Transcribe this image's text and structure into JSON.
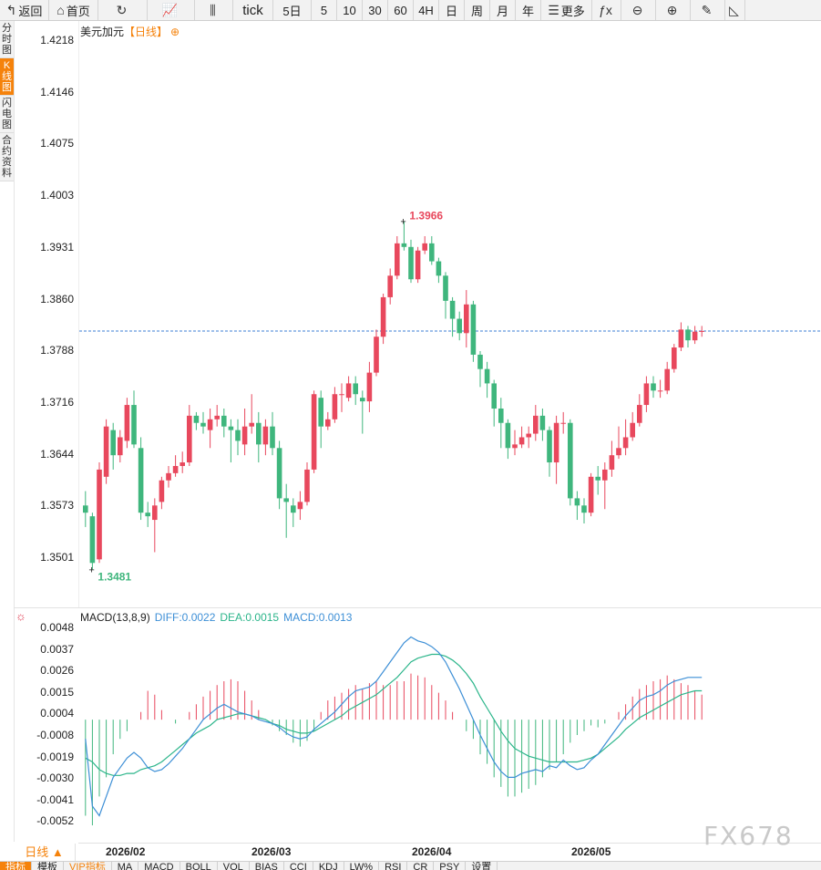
{
  "toolbar": [
    {
      "name": "back-button",
      "label": "返回",
      "icon": "↰"
    },
    {
      "name": "home-button",
      "label": "首页",
      "icon": "⌂"
    },
    {
      "name": "refresh-button",
      "label": "",
      "icon": "↻"
    },
    {
      "name": "indicator-button",
      "label": "",
      "icon": "📈"
    },
    {
      "name": "kline-style-button",
      "label": "",
      "icon": "⫼"
    },
    {
      "name": "period-tick",
      "label": "tick",
      "icon": ""
    },
    {
      "name": "period-5day",
      "label": "5日",
      "icon": ""
    },
    {
      "name": "period-5",
      "label": "5",
      "icon": ""
    },
    {
      "name": "period-10",
      "label": "10",
      "icon": ""
    },
    {
      "name": "period-30",
      "label": "30",
      "icon": ""
    },
    {
      "name": "period-60",
      "label": "60",
      "icon": ""
    },
    {
      "name": "period-4h",
      "label": "4H",
      "icon": ""
    },
    {
      "name": "period-day",
      "label": "日",
      "icon": ""
    },
    {
      "name": "period-week",
      "label": "周",
      "icon": ""
    },
    {
      "name": "period-month",
      "label": "月",
      "icon": ""
    },
    {
      "name": "period-year",
      "label": "年",
      "icon": ""
    },
    {
      "name": "more-button",
      "label": "更多",
      "icon": "☰"
    },
    {
      "name": "formula-button",
      "label": "",
      "icon": "ƒx"
    },
    {
      "name": "zoom-out-button",
      "label": "",
      "icon": "⊖"
    },
    {
      "name": "zoom-in-button",
      "label": "",
      "icon": "⊕"
    },
    {
      "name": "draw-button",
      "label": "",
      "icon": "✎"
    },
    {
      "name": "drawline-button",
      "label": "",
      "icon": "◺"
    }
  ],
  "side_tabs": [
    {
      "name": "tab-timeshare",
      "label": "分时图",
      "active": false
    },
    {
      "name": "tab-kline",
      "label": "K线图",
      "active": true
    },
    {
      "name": "tab-flash",
      "label": "闪电图",
      "active": false
    },
    {
      "name": "tab-contract",
      "label": "合约资料",
      "active": false
    }
  ],
  "chart_title": {
    "symbol": "美元加元",
    "period": "【日线】",
    "add_icon": "⊕"
  },
  "price_ticks": [
    "1.4218",
    "1.4146",
    "1.4075",
    "1.4003",
    "1.3931",
    "1.3860",
    "1.3788",
    "1.3716",
    "1.3644",
    "1.3573",
    "1.3501"
  ],
  "high_label": "1.3966",
  "low_label": "1.3481",
  "macd": {
    "title": "MACD(13,8,9)",
    "diff": "DIFF:0.0022",
    "dea": "DEA:0.0015",
    "macd": "MACD:0.0013",
    "ticks": [
      "0.0048",
      "0.0037",
      "0.0026",
      "0.0015",
      "0.0004",
      "-0.0008",
      "-0.0019",
      "-0.0030",
      "-0.0041",
      "-0.0052"
    ]
  },
  "date_labels": [
    "2026/02",
    "2026/03",
    "2026/04",
    "2026/05"
  ],
  "period_button": "日线 ▲",
  "watermark": "FX678",
  "bottom_tabs": [
    {
      "label": "指标",
      "style": "active"
    },
    {
      "label": "模板",
      "style": ""
    },
    {
      "label": "VIP指标",
      "style": "hl"
    },
    {
      "label": "MA",
      "style": ""
    },
    {
      "label": "MACD",
      "style": ""
    },
    {
      "label": "BOLL",
      "style": ""
    },
    {
      "label": "VOL",
      "style": ""
    },
    {
      "label": "BIAS",
      "style": ""
    },
    {
      "label": "CCI",
      "style": ""
    },
    {
      "label": "KDJ",
      "style": ""
    },
    {
      "label": "LW%",
      "style": ""
    },
    {
      "label": "RSI",
      "style": ""
    },
    {
      "label": "CR",
      "style": ""
    },
    {
      "label": "PSY",
      "style": ""
    },
    {
      "label": "设置",
      "style": ""
    }
  ],
  "colors": {
    "up": "#e8485d",
    "down": "#3fb67d",
    "diff": "#3d8fd6",
    "dea": "#2bb58a",
    "accent": "#f5820b",
    "last_price_line": "#3d7fd6"
  },
  "chart_data": [
    {
      "type": "candlestick",
      "title": "美元加元【日线】",
      "y_range": [
        1.3481,
        1.4218
      ],
      "last_price": 1.3813,
      "high": 1.3966,
      "low": 1.3481,
      "x_labels": [
        "2026/02",
        "2026/03",
        "2026/04",
        "2026/05"
      ],
      "candles": [
        [
          1.357,
          1.356,
          1.359,
          1.354
        ],
        [
          1.3555,
          1.349,
          1.356,
          1.3481
        ],
        [
          1.3495,
          1.362,
          1.363,
          1.349
        ],
        [
          1.361,
          1.368,
          1.369,
          1.36
        ],
        [
          1.3675,
          1.364,
          1.3685,
          1.362
        ],
        [
          1.364,
          1.3665,
          1.3675,
          1.363
        ],
        [
          1.366,
          1.371,
          1.372,
          1.365
        ],
        [
          1.371,
          1.3655,
          1.373,
          1.365
        ],
        [
          1.365,
          1.356,
          1.3665,
          1.355
        ],
        [
          1.356,
          1.3555,
          1.3575,
          1.354
        ],
        [
          1.355,
          1.357,
          1.358,
          1.3505
        ],
        [
          1.3575,
          1.3605,
          1.361,
          1.3565
        ],
        [
          1.3605,
          1.3615,
          1.3625,
          1.3595
        ],
        [
          1.3615,
          1.3625,
          1.364,
          1.361
        ],
        [
          1.3625,
          1.363,
          1.3645,
          1.3615
        ],
        [
          1.363,
          1.3695,
          1.371,
          1.3625
        ],
        [
          1.3695,
          1.3685,
          1.37,
          1.3675
        ],
        [
          1.3685,
          1.368,
          1.37,
          1.367
        ],
        [
          1.3675,
          1.369,
          1.3705,
          1.365
        ],
        [
          1.369,
          1.3695,
          1.371,
          1.368
        ],
        [
          1.3695,
          1.368,
          1.3705,
          1.3665
        ],
        [
          1.368,
          1.3675,
          1.369,
          1.363
        ],
        [
          1.3675,
          1.366,
          1.369,
          1.364
        ],
        [
          1.3655,
          1.368,
          1.3705,
          1.364
        ],
        [
          1.368,
          1.3685,
          1.3725,
          1.367
        ],
        [
          1.3685,
          1.3655,
          1.37,
          1.363
        ],
        [
          1.3655,
          1.368,
          1.369,
          1.364
        ],
        [
          1.368,
          1.365,
          1.37,
          1.364
        ],
        [
          1.365,
          1.358,
          1.366,
          1.3565
        ],
        [
          1.358,
          1.3575,
          1.36,
          1.3525
        ],
        [
          1.357,
          1.356,
          1.358,
          1.354
        ],
        [
          1.3565,
          1.3575,
          1.359,
          1.355
        ],
        [
          1.3575,
          1.362,
          1.363,
          1.357
        ],
        [
          1.362,
          1.3725,
          1.373,
          1.3615
        ],
        [
          1.372,
          1.368,
          1.373,
          1.365
        ],
        [
          1.368,
          1.369,
          1.37,
          1.3675
        ],
        [
          1.369,
          1.3725,
          1.3735,
          1.3685
        ],
        [
          1.3725,
          1.3725,
          1.374,
          1.37
        ],
        [
          1.372,
          1.374,
          1.375,
          1.3715
        ],
        [
          1.374,
          1.3725,
          1.375,
          1.371
        ],
        [
          1.372,
          1.3715,
          1.373,
          1.367
        ],
        [
          1.3715,
          1.3755,
          1.377,
          1.37
        ],
        [
          1.3755,
          1.3805,
          1.3815,
          1.375
        ],
        [
          1.3805,
          1.386,
          1.3865,
          1.3795
        ],
        [
          1.386,
          1.389,
          1.39,
          1.385
        ],
        [
          1.389,
          1.3935,
          1.3945,
          1.3885
        ],
        [
          1.3935,
          1.393,
          1.3966,
          1.3925
        ],
        [
          1.393,
          1.3885,
          1.394,
          1.388
        ],
        [
          1.3885,
          1.3925,
          1.393,
          1.388
        ],
        [
          1.3925,
          1.3935,
          1.3945,
          1.392
        ],
        [
          1.3935,
          1.391,
          1.3945,
          1.3905
        ],
        [
          1.391,
          1.389,
          1.3915,
          1.388
        ],
        [
          1.389,
          1.3855,
          1.3895,
          1.383
        ],
        [
          1.3855,
          1.383,
          1.386,
          1.3805
        ],
        [
          1.383,
          1.381,
          1.384,
          1.38
        ],
        [
          1.381,
          1.385,
          1.387,
          1.379
        ],
        [
          1.385,
          1.378,
          1.3855,
          1.377
        ],
        [
          1.378,
          1.376,
          1.3785,
          1.3735
        ],
        [
          1.376,
          1.374,
          1.377,
          1.372
        ],
        [
          1.374,
          1.3705,
          1.3745,
          1.368
        ],
        [
          1.3705,
          1.3685,
          1.372,
          1.365
        ],
        [
          1.3685,
          1.365,
          1.369,
          1.3635
        ],
        [
          1.365,
          1.3655,
          1.3675,
          1.364
        ],
        [
          1.3655,
          1.3665,
          1.368,
          1.365
        ],
        [
          1.3665,
          1.367,
          1.368,
          1.365
        ],
        [
          1.367,
          1.3695,
          1.371,
          1.366
        ],
        [
          1.3695,
          1.3675,
          1.3705,
          1.366
        ],
        [
          1.3675,
          1.363,
          1.368,
          1.361
        ],
        [
          1.363,
          1.3685,
          1.3695,
          1.36
        ],
        [
          1.3685,
          1.3685,
          1.37,
          1.367
        ],
        [
          1.3685,
          1.358,
          1.369,
          1.357
        ],
        [
          1.358,
          1.357,
          1.359,
          1.355
        ],
        [
          1.357,
          1.356,
          1.358,
          1.3545
        ],
        [
          1.356,
          1.361,
          1.3615,
          1.3555
        ],
        [
          1.361,
          1.3605,
          1.3625,
          1.3585
        ],
        [
          1.3605,
          1.362,
          1.363,
          1.3565
        ],
        [
          1.362,
          1.364,
          1.366,
          1.361
        ],
        [
          1.364,
          1.365,
          1.368,
          1.3635
        ],
        [
          1.365,
          1.3665,
          1.369,
          1.364
        ],
        [
          1.3665,
          1.3685,
          1.37,
          1.366
        ],
        [
          1.3685,
          1.371,
          1.3725,
          1.368
        ],
        [
          1.371,
          1.374,
          1.375,
          1.37
        ],
        [
          1.374,
          1.373,
          1.375,
          1.372
        ],
        [
          1.373,
          1.373,
          1.3745,
          1.372
        ],
        [
          1.373,
          1.376,
          1.377,
          1.3725
        ],
        [
          1.376,
          1.379,
          1.3795,
          1.3755
        ],
        [
          1.379,
          1.3815,
          1.3825,
          1.3785
        ],
        [
          1.3815,
          1.38,
          1.382,
          1.379
        ],
        [
          1.38,
          1.3812,
          1.382,
          1.3795
        ],
        [
          1.3812,
          1.3813,
          1.382,
          1.3805
        ]
      ]
    },
    {
      "type": "macd",
      "title": "MACD(13,8,9)",
      "y_range": [
        -0.006,
        0.0048
      ],
      "diff_last": 0.0022,
      "dea_last": 0.0015,
      "macd_last": 0.0013,
      "diff": [
        -0.001,
        -0.0045,
        -0.005,
        -0.004,
        -0.003,
        -0.0025,
        -0.002,
        -0.0017,
        -0.002,
        -0.0025,
        -0.0027,
        -0.0026,
        -0.0023,
        -0.0019,
        -0.0015,
        -0.001,
        -0.0005,
        0.0,
        0.0003,
        0.0006,
        0.0008,
        0.0006,
        0.0004,
        0.0003,
        0.0002,
        0.0,
        -0.0001,
        -0.0002,
        -0.0004,
        -0.0007,
        -0.0009,
        -0.001,
        -0.0009,
        -0.0005,
        -0.0002,
        0.0001,
        0.0004,
        0.0008,
        0.0012,
        0.0015,
        0.0016,
        0.0017,
        0.002,
        0.0025,
        0.003,
        0.0035,
        0.004,
        0.0043,
        0.0041,
        0.004,
        0.0038,
        0.0035,
        0.003,
        0.0023,
        0.0016,
        0.0008,
        0.0,
        -0.0008,
        -0.0015,
        -0.0022,
        -0.0027,
        -0.003,
        -0.003,
        -0.0028,
        -0.0027,
        -0.0026,
        -0.0027,
        -0.0024,
        -0.0025,
        -0.0021,
        -0.0024,
        -0.0026,
        -0.0025,
        -0.0021,
        -0.0018,
        -0.0013,
        -0.0008,
        -0.0003,
        0.0002,
        0.0006,
        0.001,
        0.0012,
        0.0013,
        0.0015,
        0.0018,
        0.002,
        0.0021,
        0.0022,
        0.0022,
        0.0022
      ],
      "dea": [
        -0.002,
        -0.0022,
        -0.0026,
        -0.0028,
        -0.0029,
        -0.0029,
        -0.0028,
        -0.0028,
        -0.0026,
        -0.0025,
        -0.0024,
        -0.0022,
        -0.0019,
        -0.0016,
        -0.0013,
        -0.001,
        -0.0007,
        -0.0005,
        -0.0003,
        0.0,
        0.0001,
        0.0002,
        0.0003,
        0.0003,
        0.0002,
        0.0001,
        0.0,
        -0.0002,
        -0.0003,
        -0.0005,
        -0.0006,
        -0.0007,
        -0.0007,
        -0.0006,
        -0.0004,
        -0.0002,
        0.0,
        0.0002,
        0.0005,
        0.0007,
        0.0009,
        0.0011,
        0.0013,
        0.0016,
        0.0019,
        0.0022,
        0.0026,
        0.003,
        0.0032,
        0.0033,
        0.0034,
        0.0034,
        0.0033,
        0.0031,
        0.0028,
        0.0024,
        0.0019,
        0.0012,
        0.0006,
        0.0,
        -0.0006,
        -0.0011,
        -0.0015,
        -0.0017,
        -0.0019,
        -0.002,
        -0.0021,
        -0.0022,
        -0.0022,
        -0.0022,
        -0.0022,
        -0.0022,
        -0.0021,
        -0.002,
        -0.0018,
        -0.0015,
        -0.0012,
        -0.0009,
        -0.0005,
        -0.0002,
        0.0001,
        0.0003,
        0.0005,
        0.0007,
        0.0009,
        0.0011,
        0.0013,
        0.0014,
        0.0015,
        0.0015
      ],
      "hist": [
        -0.005,
        -0.0055,
        -0.004,
        -0.003,
        -0.0018,
        -0.001,
        -0.0006,
        0.0,
        0.0004,
        0.0015,
        0.0013,
        0.0005,
        0.0,
        -0.0002,
        0.0,
        0.0004,
        0.0008,
        0.0012,
        0.0015,
        0.0018,
        0.002,
        0.0021,
        0.002,
        0.0015,
        0.001,
        0.0005,
        0.0,
        -0.0003,
        -0.0006,
        -0.0008,
        -0.0012,
        -0.0014,
        -0.0011,
        -0.0006,
        0.0004,
        0.001,
        0.0012,
        0.0014,
        0.0016,
        0.0018,
        0.0016,
        0.0019,
        0.002,
        0.0018,
        0.0018,
        0.002,
        0.002,
        0.0024,
        0.0023,
        0.0022,
        0.0018,
        0.0014,
        0.001,
        0.0004,
        0.0,
        -0.0006,
        -0.001,
        -0.0018,
        -0.0023,
        -0.003,
        -0.0035,
        -0.004,
        -0.004,
        -0.0038,
        -0.0036,
        -0.0034,
        -0.003,
        -0.0026,
        -0.0022,
        -0.0018,
        -0.0012,
        -0.0008,
        -0.0006,
        -0.0003,
        -0.0004,
        -0.0002,
        0.0,
        0.0004,
        0.0008,
        0.0012,
        0.0016,
        0.0018,
        0.002,
        0.0021,
        0.0023,
        0.0021,
        0.0019,
        0.0018,
        0.0015,
        0.0013
      ]
    }
  ]
}
